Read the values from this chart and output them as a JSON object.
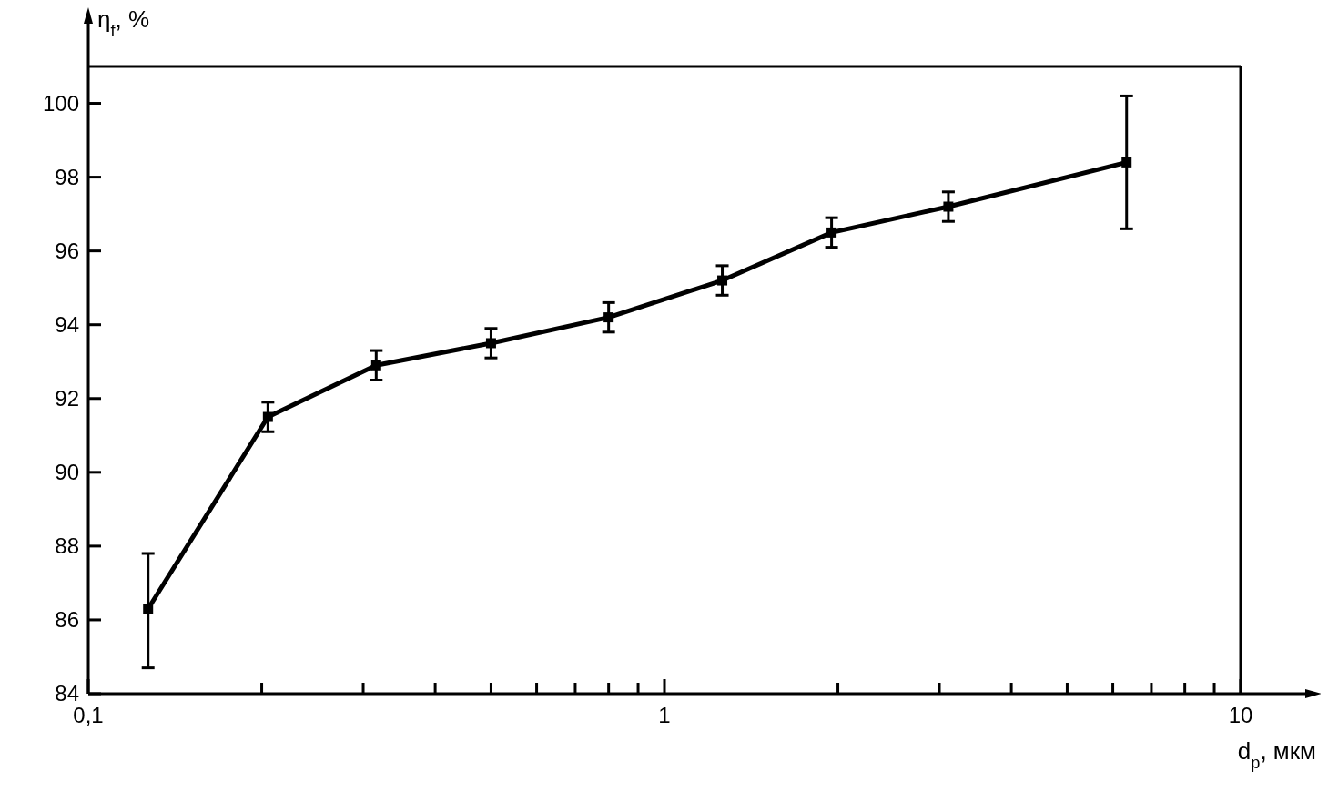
{
  "chart_data": {
    "type": "line",
    "xlabel": "d$_{p}$, мкм",
    "ylabel": "η$_{f}$, %",
    "log": "x",
    "marker": "square",
    "line_style": "solid",
    "grid": false,
    "x": [
      0.127,
      0.205,
      0.316,
      0.5,
      0.8,
      1.26,
      1.95,
      3.11,
      6.34
    ],
    "series": [
      {
        "color": "#000000",
        "values": [
          86.3,
          91.5,
          92.9,
          93.5,
          94.2,
          95.2,
          96.5,
          97.2,
          98.4
        ],
        "errors": [
          [
            84.7,
            87.8
          ],
          [
            91.1,
            91.9
          ],
          [
            92.5,
            93.3
          ],
          [
            93.1,
            93.9
          ],
          [
            93.8,
            94.6
          ],
          [
            94.8,
            95.6
          ],
          [
            96.1,
            96.9
          ],
          [
            96.8,
            97.6
          ],
          [
            96.6,
            100.2
          ]
        ]
      }
    ],
    "xlim": [
      0.1,
      10
    ],
    "ylim": [
      84,
      101
    ],
    "xticks": [
      {
        "value": 0.1,
        "label": "0,1"
      },
      {
        "value": 0.2,
        "label": null
      },
      {
        "value": 0.3,
        "label": null
      },
      {
        "value": 0.4,
        "label": null
      },
      {
        "value": 0.5,
        "label": null
      },
      {
        "value": 0.6,
        "label": null
      },
      {
        "value": 0.7,
        "label": null
      },
      {
        "value": 0.8,
        "label": null
      },
      {
        "value": 0.9,
        "label": null
      },
      1,
      {
        "value": 2,
        "label": null
      },
      {
        "value": 3,
        "label": null
      },
      {
        "value": 4,
        "label": null
      },
      {
        "value": 5,
        "label": null
      },
      {
        "value": 6,
        "label": null
      },
      {
        "value": 7,
        "label": null
      },
      {
        "value": 8,
        "label": null
      },
      {
        "value": 9,
        "label": null
      },
      10
    ],
    "yticks": [
      84,
      86,
      88,
      90,
      92,
      94,
      96,
      98,
      100
    ]
  }
}
